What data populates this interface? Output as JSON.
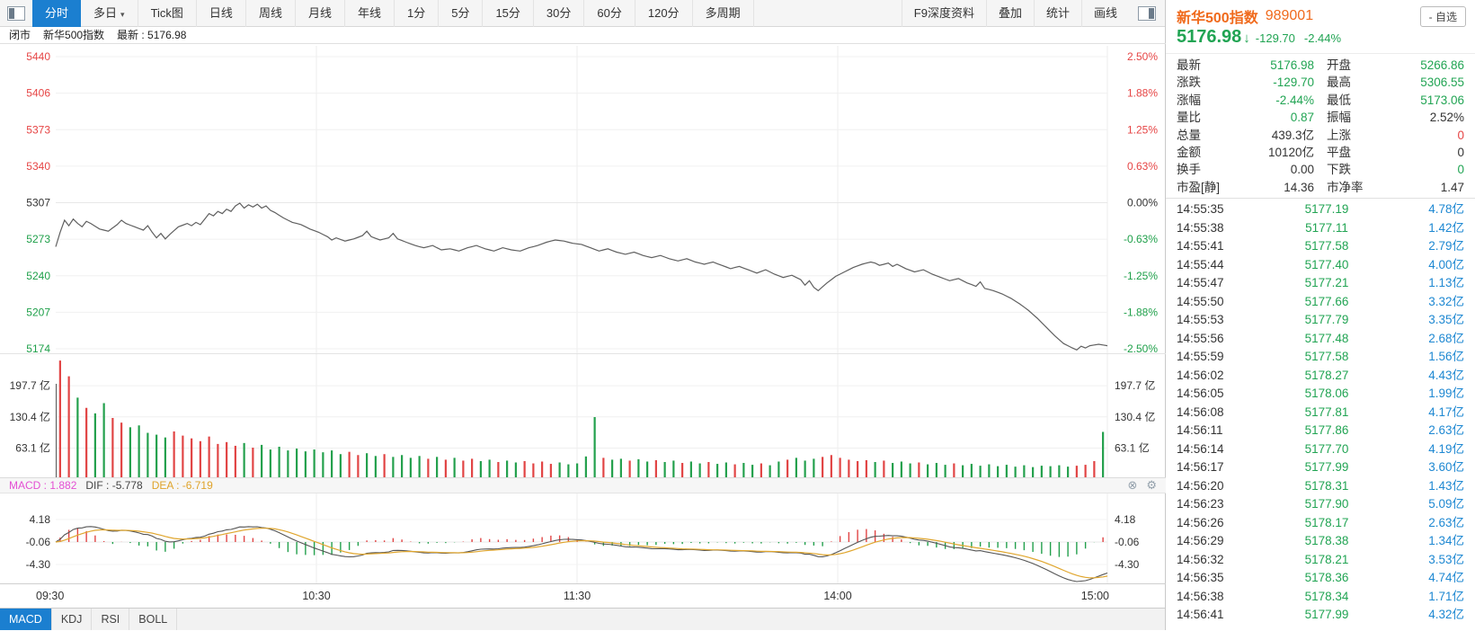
{
  "toolbar": {
    "items": [
      {
        "key": "fenshi",
        "label": "分时",
        "selected": true
      },
      {
        "key": "duori",
        "label": "多日",
        "arrow": true
      },
      {
        "key": "tick",
        "label": "Tick图"
      },
      {
        "key": "rixian",
        "label": "日线"
      },
      {
        "key": "zhouxian",
        "label": "周线"
      },
      {
        "key": "yuexian",
        "label": "月线"
      },
      {
        "key": "nianxian",
        "label": "年线"
      },
      {
        "key": "1min",
        "label": "1分"
      },
      {
        "key": "5min",
        "label": "5分"
      },
      {
        "key": "15min",
        "label": "15分"
      },
      {
        "key": "30min",
        "label": "30分"
      },
      {
        "key": "60min",
        "label": "60分"
      },
      {
        "key": "120min",
        "label": "120分"
      },
      {
        "key": "multi",
        "label": "多周期"
      }
    ],
    "right_items": [
      {
        "key": "f9",
        "label": "F9深度资料"
      },
      {
        "key": "overlay",
        "label": "叠加"
      },
      {
        "key": "stat",
        "label": "统计"
      },
      {
        "key": "draw",
        "label": "画线"
      }
    ]
  },
  "statusbar": {
    "market_status": "闭市",
    "stock_name": "新华500指数",
    "latest": "最新 : 5176.98"
  },
  "macd_header": {
    "macd": "MACD : 1.882",
    "dif": "DIF : -5.778",
    "dea": "DEA : -6.719"
  },
  "tabs": [
    {
      "label": "MACD",
      "selected": true
    },
    {
      "label": "KDJ"
    },
    {
      "label": "RSI"
    },
    {
      "label": "BOLL"
    }
  ],
  "quote": {
    "name": "新华500指数",
    "code": "989001",
    "fav_button": "- 自选",
    "price": "5176.98",
    "arrow": "↓",
    "change": "-129.70",
    "change_pct": "-2.44%",
    "stats": [
      [
        {
          "l": "最新",
          "v": "5176.98",
          "c": "g"
        },
        {
          "l": "开盘",
          "v": "5266.86",
          "c": "g"
        }
      ],
      [
        {
          "l": "涨跌",
          "v": "-129.70",
          "c": "g"
        },
        {
          "l": "最高",
          "v": "5306.55",
          "c": "g"
        }
      ],
      [
        {
          "l": "涨幅",
          "v": "-2.44%",
          "c": "g"
        },
        {
          "l": "最低",
          "v": "5173.06",
          "c": "g"
        }
      ],
      [
        {
          "l": "量比",
          "v": "0.87",
          "c": "g"
        },
        {
          "l": "振幅",
          "v": "2.52%",
          "c": "k"
        }
      ],
      [
        {
          "l": "总量",
          "v": "439.3亿",
          "c": "k"
        },
        {
          "l": "上涨",
          "v": "0",
          "c": "r"
        }
      ],
      [
        {
          "l": "金额",
          "v": "10120亿",
          "c": "k"
        },
        {
          "l": "平盘",
          "v": "0",
          "c": "k"
        }
      ],
      [
        {
          "l": "换手",
          "v": "0.00",
          "c": "k"
        },
        {
          "l": "下跌",
          "v": "0",
          "c": "g"
        }
      ],
      [
        {
          "l": "市盈[静]",
          "v": "14.36",
          "c": "k"
        },
        {
          "l": "市净率",
          "v": "1.47",
          "c": "k"
        }
      ]
    ],
    "ticks": [
      [
        "14:55:35",
        "5177.19",
        "4.78亿"
      ],
      [
        "14:55:38",
        "5177.11",
        "1.42亿"
      ],
      [
        "14:55:41",
        "5177.58",
        "2.79亿"
      ],
      [
        "14:55:44",
        "5177.40",
        "4.00亿"
      ],
      [
        "14:55:47",
        "5177.21",
        "1.13亿"
      ],
      [
        "14:55:50",
        "5177.66",
        "3.32亿"
      ],
      [
        "14:55:53",
        "5177.79",
        "3.35亿"
      ],
      [
        "14:55:56",
        "5177.48",
        "2.68亿"
      ],
      [
        "14:55:59",
        "5177.58",
        "1.56亿"
      ],
      [
        "14:56:02",
        "5178.27",
        "4.43亿"
      ],
      [
        "14:56:05",
        "5178.06",
        "1.99亿"
      ],
      [
        "14:56:08",
        "5177.81",
        "4.17亿"
      ],
      [
        "14:56:11",
        "5177.86",
        "2.63亿"
      ],
      [
        "14:56:14",
        "5177.70",
        "4.19亿"
      ],
      [
        "14:56:17",
        "5177.99",
        "3.60亿"
      ],
      [
        "14:56:20",
        "5178.31",
        "1.43亿"
      ],
      [
        "14:56:23",
        "5177.90",
        "5.09亿"
      ],
      [
        "14:56:26",
        "5178.17",
        "2.63亿"
      ],
      [
        "14:56:29",
        "5178.38",
        "1.34亿"
      ],
      [
        "14:56:32",
        "5178.21",
        "3.53亿"
      ],
      [
        "14:56:35",
        "5178.36",
        "4.74亿"
      ],
      [
        "14:56:38",
        "5178.34",
        "1.71亿"
      ],
      [
        "14:56:41",
        "5177.99",
        "4.32亿"
      ]
    ]
  },
  "chart_data": {
    "type": "line",
    "title": "新华500指数 分时走势",
    "prev_close": 5306.9,
    "open": 5266.86,
    "high": 5306.55,
    "low": 5173.06,
    "close": 5176.98,
    "x_ticks": [
      "09:30",
      "10:30",
      "11:30",
      "14:00",
      "15:00"
    ],
    "price_axis_left": [
      "5440",
      "5406",
      "5373",
      "5340",
      "5307",
      "5273",
      "5240",
      "5207",
      "5174"
    ],
    "pct_axis_right": [
      "2.50%",
      "1.88%",
      "1.25%",
      "0.63%",
      "0.00%",
      "-0.63%",
      "-1.25%",
      "-1.88%",
      "-2.50%"
    ],
    "volume_axis_values": [
      197.7,
      130.4,
      63.1
    ],
    "volume_axis_unit": "亿",
    "macd_axis": [
      "4.18",
      "-0.06",
      "-4.30"
    ],
    "minutes_total": 240,
    "price_points": [
      [
        0,
        5266.9
      ],
      [
        1,
        5280
      ],
      [
        2,
        5291
      ],
      [
        3,
        5286
      ],
      [
        4,
        5292
      ],
      [
        5,
        5288
      ],
      [
        6,
        5285
      ],
      [
        7,
        5290
      ],
      [
        8,
        5288
      ],
      [
        10,
        5283
      ],
      [
        12,
        5281
      ],
      [
        14,
        5287
      ],
      [
        15,
        5291
      ],
      [
        16,
        5288
      ],
      [
        18,
        5285
      ],
      [
        20,
        5282
      ],
      [
        21,
        5286
      ],
      [
        22,
        5280
      ],
      [
        23,
        5275
      ],
      [
        24,
        5279
      ],
      [
        25,
        5274
      ],
      [
        26,
        5278
      ],
      [
        28,
        5285
      ],
      [
        30,
        5288
      ],
      [
        31,
        5286
      ],
      [
        32,
        5289
      ],
      [
        33,
        5287
      ],
      [
        34,
        5292
      ],
      [
        35,
        5297
      ],
      [
        36,
        5295
      ],
      [
        37,
        5299
      ],
      [
        38,
        5297
      ],
      [
        39,
        5301
      ],
      [
        40,
        5299
      ],
      [
        41,
        5304
      ],
      [
        42,
        5306.5
      ],
      [
        43,
        5302
      ],
      [
        44,
        5305
      ],
      [
        45,
        5303
      ],
      [
        46,
        5305.5
      ],
      [
        47,
        5302
      ],
      [
        48,
        5304
      ],
      [
        49,
        5300
      ],
      [
        50,
        5298
      ],
      [
        52,
        5293
      ],
      [
        54,
        5289
      ],
      [
        56,
        5287
      ],
      [
        58,
        5283
      ],
      [
        60,
        5280
      ],
      [
        62,
        5276
      ],
      [
        63,
        5273
      ],
      [
        64,
        5275
      ],
      [
        66,
        5272
      ],
      [
        68,
        5274
      ],
      [
        70,
        5277
      ],
      [
        71,
        5281
      ],
      [
        72,
        5276
      ],
      [
        74,
        5273
      ],
      [
        76,
        5275
      ],
      [
        77,
        5279
      ],
      [
        78,
        5274
      ],
      [
        80,
        5271
      ],
      [
        82,
        5268
      ],
      [
        84,
        5266
      ],
      [
        86,
        5268
      ],
      [
        88,
        5264
      ],
      [
        90,
        5265
      ],
      [
        92,
        5263
      ],
      [
        94,
        5266
      ],
      [
        96,
        5268
      ],
      [
        98,
        5265
      ],
      [
        100,
        5263
      ],
      [
        102,
        5266
      ],
      [
        104,
        5264
      ],
      [
        106,
        5263
      ],
      [
        108,
        5266
      ],
      [
        110,
        5268
      ],
      [
        112,
        5271
      ],
      [
        114,
        5273
      ],
      [
        116,
        5272
      ],
      [
        118,
        5270
      ],
      [
        120,
        5269
      ],
      [
        122,
        5266
      ],
      [
        124,
        5263
      ],
      [
        126,
        5265
      ],
      [
        128,
        5262
      ],
      [
        130,
        5260
      ],
      [
        132,
        5262
      ],
      [
        134,
        5259
      ],
      [
        136,
        5257
      ],
      [
        138,
        5259
      ],
      [
        140,
        5256
      ],
      [
        142,
        5254
      ],
      [
        144,
        5256
      ],
      [
        146,
        5253
      ],
      [
        148,
        5251
      ],
      [
        150,
        5253
      ],
      [
        152,
        5250
      ],
      [
        154,
        5247
      ],
      [
        156,
        5249
      ],
      [
        158,
        5246
      ],
      [
        160,
        5243
      ],
      [
        162,
        5246
      ],
      [
        164,
        5242
      ],
      [
        166,
        5239
      ],
      [
        168,
        5241
      ],
      [
        170,
        5237
      ],
      [
        171,
        5232
      ],
      [
        172,
        5236
      ],
      [
        173,
        5230
      ],
      [
        174,
        5227
      ],
      [
        176,
        5234
      ],
      [
        178,
        5240
      ],
      [
        180,
        5244
      ],
      [
        182,
        5248
      ],
      [
        184,
        5251
      ],
      [
        186,
        5253
      ],
      [
        187,
        5252
      ],
      [
        188,
        5250
      ],
      [
        190,
        5252
      ],
      [
        191,
        5249
      ],
      [
        192,
        5251
      ],
      [
        194,
        5247
      ],
      [
        196,
        5244
      ],
      [
        198,
        5246
      ],
      [
        200,
        5242
      ],
      [
        202,
        5239
      ],
      [
        204,
        5236
      ],
      [
        206,
        5238
      ],
      [
        208,
        5234
      ],
      [
        210,
        5231
      ],
      [
        211,
        5235
      ],
      [
        212,
        5229
      ],
      [
        214,
        5227
      ],
      [
        216,
        5224
      ],
      [
        218,
        5220
      ],
      [
        220,
        5215
      ],
      [
        222,
        5209
      ],
      [
        224,
        5202
      ],
      [
        226,
        5194
      ],
      [
        228,
        5186
      ],
      [
        230,
        5179
      ],
      [
        232,
        5175
      ],
      [
        233,
        5173.2
      ],
      [
        234,
        5176.5
      ],
      [
        235,
        5175
      ],
      [
        236,
        5177
      ],
      [
        238,
        5178.3
      ],
      [
        240,
        5176.98
      ]
    ],
    "volume_bars_yi": [
      252,
      218,
      172,
      150,
      138,
      160,
      128,
      118,
      108,
      112,
      96,
      92,
      86,
      99,
      90,
      84,
      78,
      88,
      72,
      76,
      68,
      74,
      64,
      70,
      60,
      66,
      58,
      62,
      56,
      60,
      54,
      58,
      50,
      55,
      48,
      52,
      46,
      50,
      44,
      48,
      42,
      46,
      40,
      44,
      38,
      42,
      36,
      40,
      35,
      38,
      33,
      36,
      32,
      35,
      30,
      34,
      29,
      32,
      28,
      30,
      45,
      130,
      42,
      38,
      40,
      36,
      39,
      34,
      37,
      33,
      36,
      31,
      34,
      30,
      33,
      29,
      32,
      28,
      31,
      27,
      30,
      26,
      34,
      38,
      42,
      36,
      40,
      44,
      48,
      42,
      38,
      35,
      37,
      33,
      36,
      31,
      34,
      30,
      32,
      28,
      31,
      27,
      30,
      26,
      29,
      25,
      28,
      24,
      27,
      23,
      26,
      22,
      25,
      24,
      26,
      23,
      25,
      27,
      35,
      98
    ],
    "macd_values": {
      "macd": 1.882,
      "dif": -5.778,
      "dea": -6.719,
      "periods": [
        12,
        26,
        9
      ]
    },
    "colors": {
      "up": "#e14444",
      "down": "#23a04c",
      "price_line": "#5f5f5f",
      "dif_line": "#555555",
      "dea_line": "#e0a62e",
      "axis_red": "#e64545",
      "axis_green": "#1fa04a",
      "axis_black": "#333333",
      "grid": "#f0f0f0",
      "accent_blue": "#1b7fd0"
    }
  }
}
